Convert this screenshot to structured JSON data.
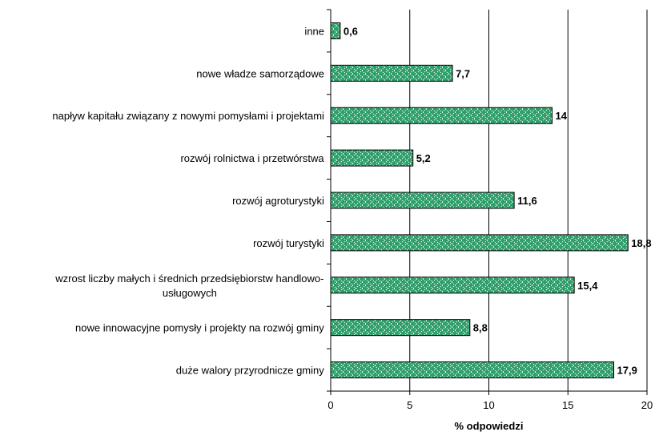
{
  "chart_data": {
    "type": "bar",
    "orientation": "horizontal",
    "categories": [
      "inne",
      "nowe władze samorządowe",
      "napływ kapitału związany z nowymi pomysłami i projektami",
      "rozwój rolnictwa i przetwórstwa",
      "rozwój agroturystyki",
      "rozwój turystyki",
      "wzrost liczby małych i średnich przedsiębiorstw handlowo-usługowych",
      "nowe innowacyjne pomysły i projekty na rozwój gminy",
      "duże walory przyrodnicze gminy"
    ],
    "category_lines": [
      [
        "inne"
      ],
      [
        "nowe władze samorządowe"
      ],
      [
        "napływ kapitału związany z nowymi pomysłami i projektami"
      ],
      [
        "rozwój rolnictwa i przetwórstwa"
      ],
      [
        "rozwój agroturystyki"
      ],
      [
        "rozwój turystyki"
      ],
      [
        "wzrost liczby małych i średnich przedsiębiorstw handlowo-",
        "usługowych"
      ],
      [
        "nowe innowacyjne pomysły i projekty na rozwój gminy"
      ],
      [
        "duże walory przyrodnicze gminy"
      ]
    ],
    "values": [
      0.6,
      7.7,
      14,
      5.2,
      11.6,
      18.8,
      15.4,
      8.8,
      17.9
    ],
    "value_labels": [
      "0,6",
      "7,7",
      "14",
      "5,2",
      "11,6",
      "18,8",
      "15,4",
      "8,8",
      "17,9"
    ],
    "xlabel": "% odpowiedzi",
    "ylabel": "",
    "xlim": [
      0,
      20
    ],
    "xticks": [
      0,
      5,
      10,
      15,
      20
    ],
    "grid": true,
    "bar_color": "#2e9e6a",
    "bar_pattern": "dotted diamond"
  }
}
